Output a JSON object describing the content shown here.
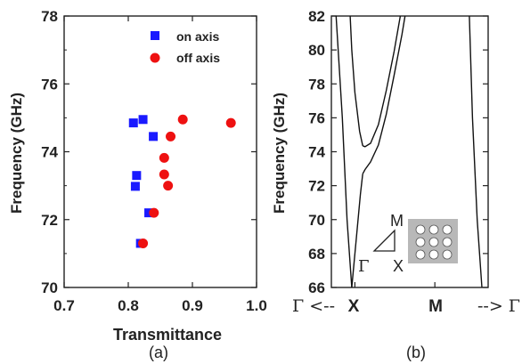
{
  "chart_data": [
    {
      "type": "scatter",
      "panel_label": "(a)",
      "xlabel": "Transmittance",
      "ylabel": "Frequency (GHz)",
      "xlim": [
        0.7,
        1.0
      ],
      "ylim": [
        70,
        78
      ],
      "x_ticks": [
        "0.7",
        "0.8",
        "0.9",
        "1.0"
      ],
      "y_ticks": [
        "70",
        "72",
        "74",
        "76",
        "78"
      ],
      "x_tick_values": [
        0.7,
        0.8,
        0.9,
        1.0
      ],
      "y_tick_values": [
        70,
        72,
        74,
        76,
        78
      ],
      "legend_position": "top-right",
      "series": [
        {
          "name": "on axis",
          "marker": "square",
          "color": "#1a1aff",
          "points": [
            {
              "x": 0.808,
              "y": 74.85
            },
            {
              "x": 0.823,
              "y": 74.95
            },
            {
              "x": 0.839,
              "y": 74.45
            },
            {
              "x": 0.813,
              "y": 73.3
            },
            {
              "x": 0.811,
              "y": 72.98
            },
            {
              "x": 0.832,
              "y": 72.2
            },
            {
              "x": 0.819,
              "y": 71.3
            }
          ]
        },
        {
          "name": "off axis",
          "marker": "circle",
          "color": "#ee1111",
          "points": [
            {
              "x": 0.885,
              "y": 74.95
            },
            {
              "x": 0.96,
              "y": 74.85
            },
            {
              "x": 0.866,
              "y": 74.45
            },
            {
              "x": 0.856,
              "y": 73.82
            },
            {
              "x": 0.856,
              "y": 73.33
            },
            {
              "x": 0.862,
              "y": 73.0
            },
            {
              "x": 0.84,
              "y": 72.2
            },
            {
              "x": 0.823,
              "y": 71.3
            }
          ]
        }
      ]
    },
    {
      "type": "line",
      "panel_label": "(b)",
      "ylabel": "Frequency (GHz)",
      "ylim": [
        66,
        82
      ],
      "y_ticks": [
        "66",
        "68",
        "70",
        "72",
        "74",
        "76",
        "78",
        "80",
        "82"
      ],
      "y_tick_values": [
        66,
        68,
        70,
        72,
        74,
        76,
        78,
        80,
        82
      ],
      "x_ticks": [
        "Γ <--",
        "X",
        "M",
        "--> Γ"
      ],
      "inset_labels": {
        "gamma": "Γ",
        "x": "X",
        "m": "M"
      },
      "bands": [
        [
          [
            0.03,
            82.0
          ],
          [
            0.07,
            76.0
          ],
          [
            0.1,
            70.0
          ],
          [
            0.13,
            66.0
          ]
        ],
        [
          [
            0.2,
            72.7
          ],
          [
            0.215,
            72.95
          ],
          [
            0.25,
            73.4
          ],
          [
            0.3,
            74.4
          ],
          [
            0.35,
            76.2
          ],
          [
            0.4,
            78.5
          ],
          [
            0.45,
            80.9
          ],
          [
            0.47,
            82.0
          ]
        ],
        [
          [
            0.2,
            74.35
          ],
          [
            0.215,
            74.3
          ],
          [
            0.25,
            74.5
          ],
          [
            0.3,
            75.6
          ],
          [
            0.35,
            77.6
          ],
          [
            0.4,
            79.9
          ],
          [
            0.44,
            82.0
          ]
        ],
        [
          [
            0.2,
            74.35
          ],
          [
            0.18,
            75.2
          ],
          [
            0.15,
            77.5
          ],
          [
            0.13,
            80.0
          ],
          [
            0.12,
            82.0
          ]
        ],
        [
          [
            0.2,
            72.7
          ],
          [
            0.185,
            71.5
          ],
          [
            0.16,
            69.0
          ],
          [
            0.13,
            66.0
          ]
        ],
        [
          [
            0.88,
            82.0
          ],
          [
            0.9,
            76.0
          ],
          [
            0.93,
            70.0
          ],
          [
            0.96,
            66.0
          ]
        ]
      ]
    }
  ]
}
